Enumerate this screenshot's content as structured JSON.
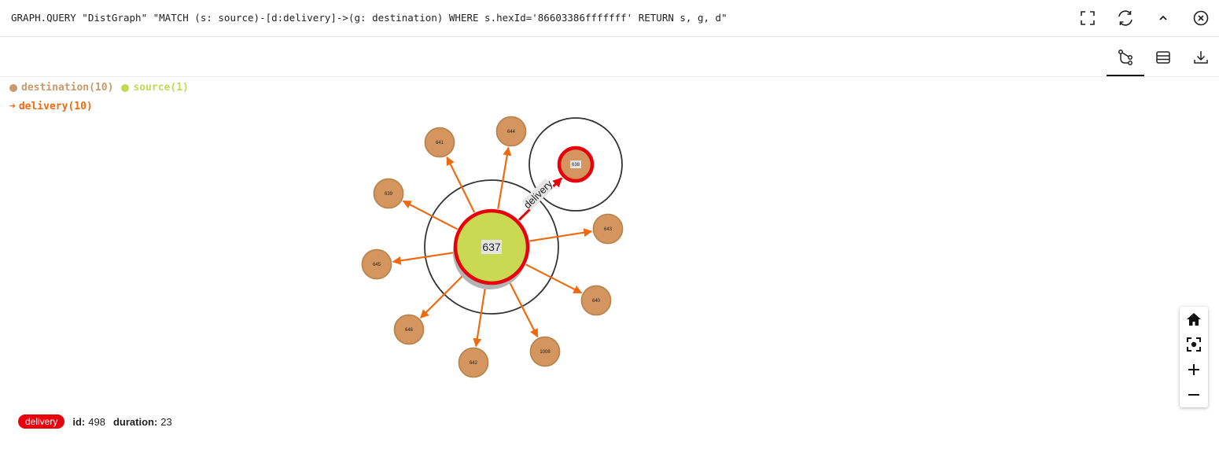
{
  "query": {
    "text": "GRAPH.QUERY \"DistGraph\" \"MATCH (s: source)-[d:delivery]->(g: destination) WHERE s.hexId='86603386fffffff' RETURN s, g, d\""
  },
  "toolbar": {
    "icons": [
      "fullscreen-icon",
      "refresh-icon",
      "collapse-icon",
      "close-icon"
    ]
  },
  "view_tabs": [
    {
      "name": "graph-view-icon",
      "active": true
    },
    {
      "name": "table-view-icon",
      "active": false
    },
    {
      "name": "download-icon",
      "active": false
    }
  ],
  "legend": {
    "labels": [
      {
        "text": "destination(10)",
        "color": "#c99a6b"
      },
      {
        "text": "source(1)",
        "color": "#c4d756"
      }
    ],
    "relationships": [
      {
        "text": "delivery(10)",
        "color": "#f0690f"
      }
    ]
  },
  "colors": {
    "destination_fill": "#d4955f",
    "destination_stroke": "#b9854f",
    "source_fill": "#c9d951",
    "edge": "#f0690f",
    "selected": "#e8000b"
  },
  "graph": {
    "center": {
      "label": "637"
    },
    "destinations": [
      "641",
      "644",
      "638",
      "639",
      "643",
      "645",
      "640",
      "646",
      "642",
      "1008"
    ],
    "edge_label": "delivery"
  },
  "zoom_controls": [
    "home-icon",
    "fit-icon",
    "zoom-in-icon",
    "zoom-out-icon"
  ],
  "status": {
    "badge": "delivery",
    "props": [
      {
        "key": "id:",
        "value": "498"
      },
      {
        "key": "duration:",
        "value": "23"
      }
    ]
  }
}
